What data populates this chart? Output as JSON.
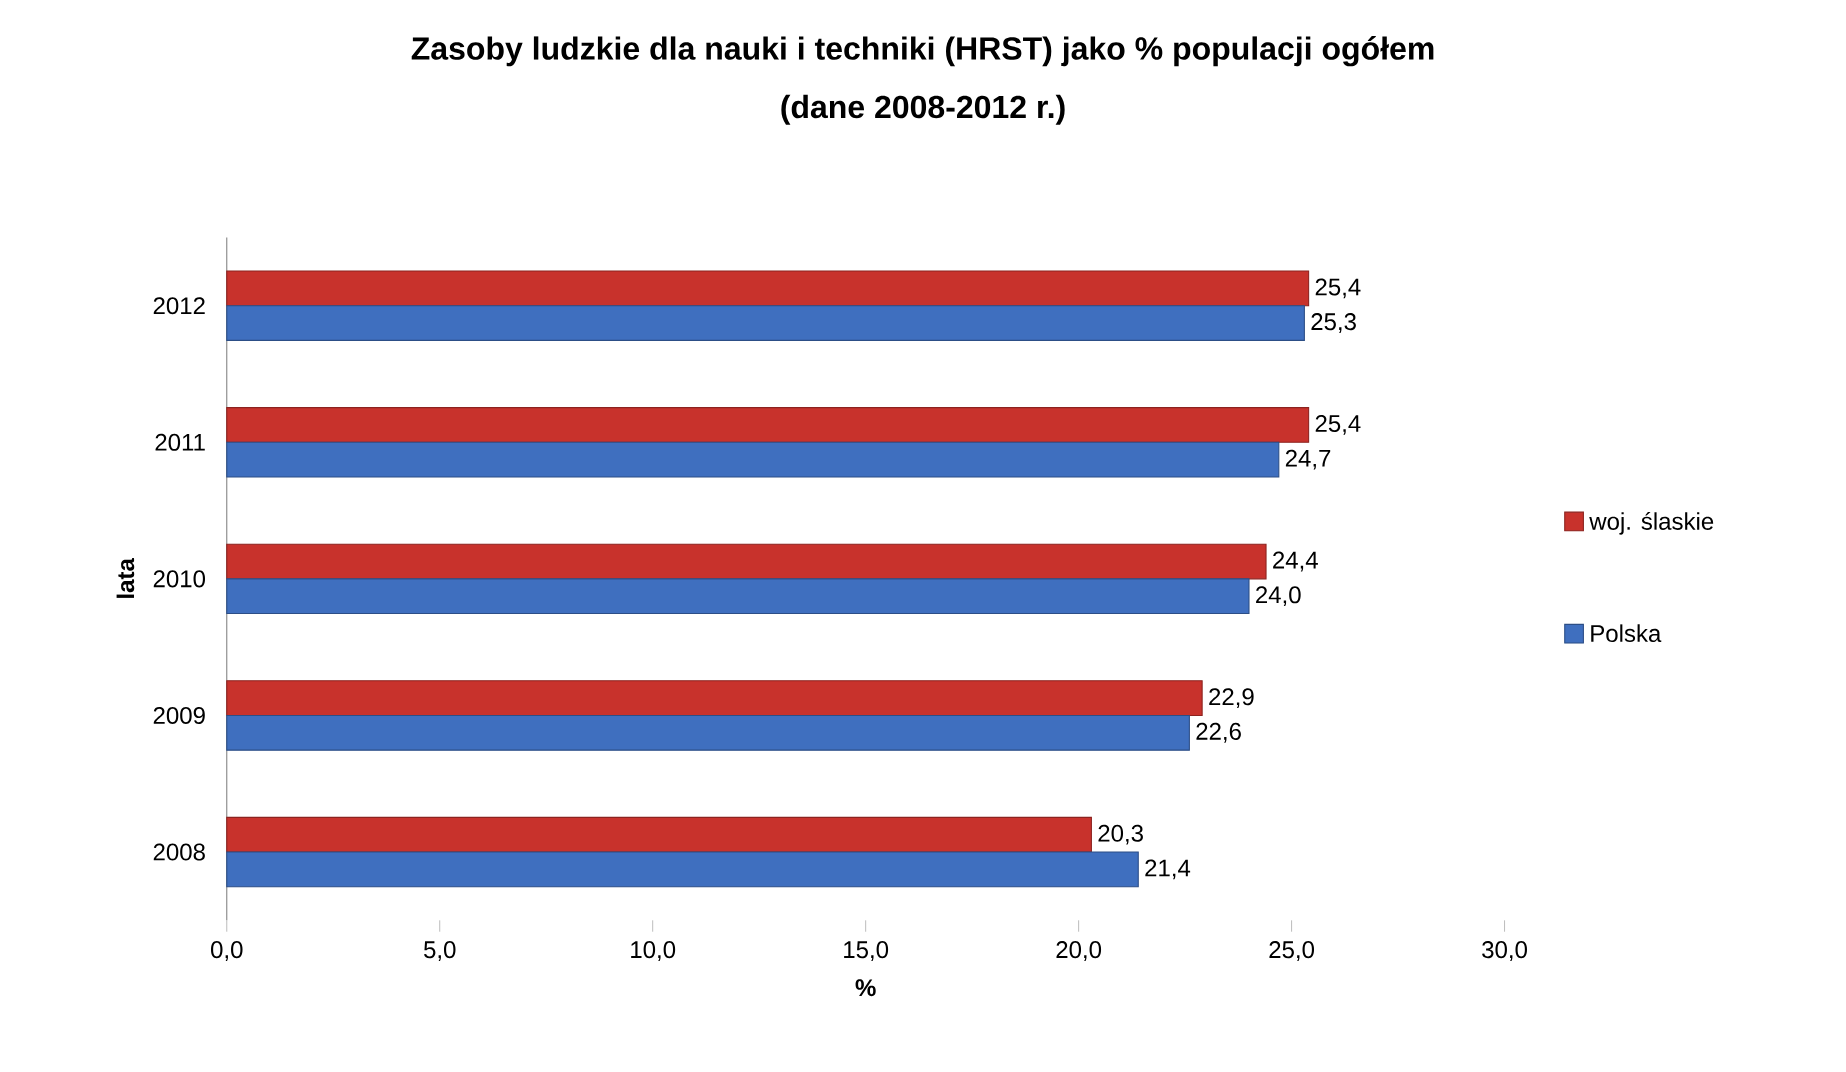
{
  "chart_data": {
    "type": "bar",
    "orientation": "horizontal",
    "title": "Zasoby ludzkie dla nauki i techniki (HRST) jako % populacji ogółem",
    "subtitle": "(dane 2008-2012 r.)",
    "xlabel": "%",
    "ylabel": "lata",
    "categories": [
      "2012",
      "2011",
      "2010",
      "2009",
      "2008"
    ],
    "series": [
      {
        "name": "woj. ślaskie",
        "color": "#c8322c",
        "values": [
          25.4,
          25.4,
          24.4,
          22.9,
          20.3
        ],
        "value_labels": [
          "25,4",
          "25,4",
          "24,4",
          "22,9",
          "20,3"
        ]
      },
      {
        "name": "Polska",
        "color": "#3f6fbf",
        "values": [
          25.3,
          24.7,
          24.0,
          22.6,
          21.4
        ],
        "value_labels": [
          "25,3",
          "24,7",
          "24,0",
          "22,6",
          "21,4"
        ]
      }
    ],
    "xlim": [
      0,
      30
    ],
    "xticks": [
      {
        "value": 0,
        "label": "0,0"
      },
      {
        "value": 5,
        "label": "5,0"
      },
      {
        "value": 10,
        "label": "10,0"
      },
      {
        "value": 15,
        "label": "15,0"
      },
      {
        "value": 20,
        "label": "20,0"
      },
      {
        "value": 25,
        "label": "25,0"
      },
      {
        "value": 30,
        "label": "30,0"
      }
    ],
    "legend": "right"
  }
}
